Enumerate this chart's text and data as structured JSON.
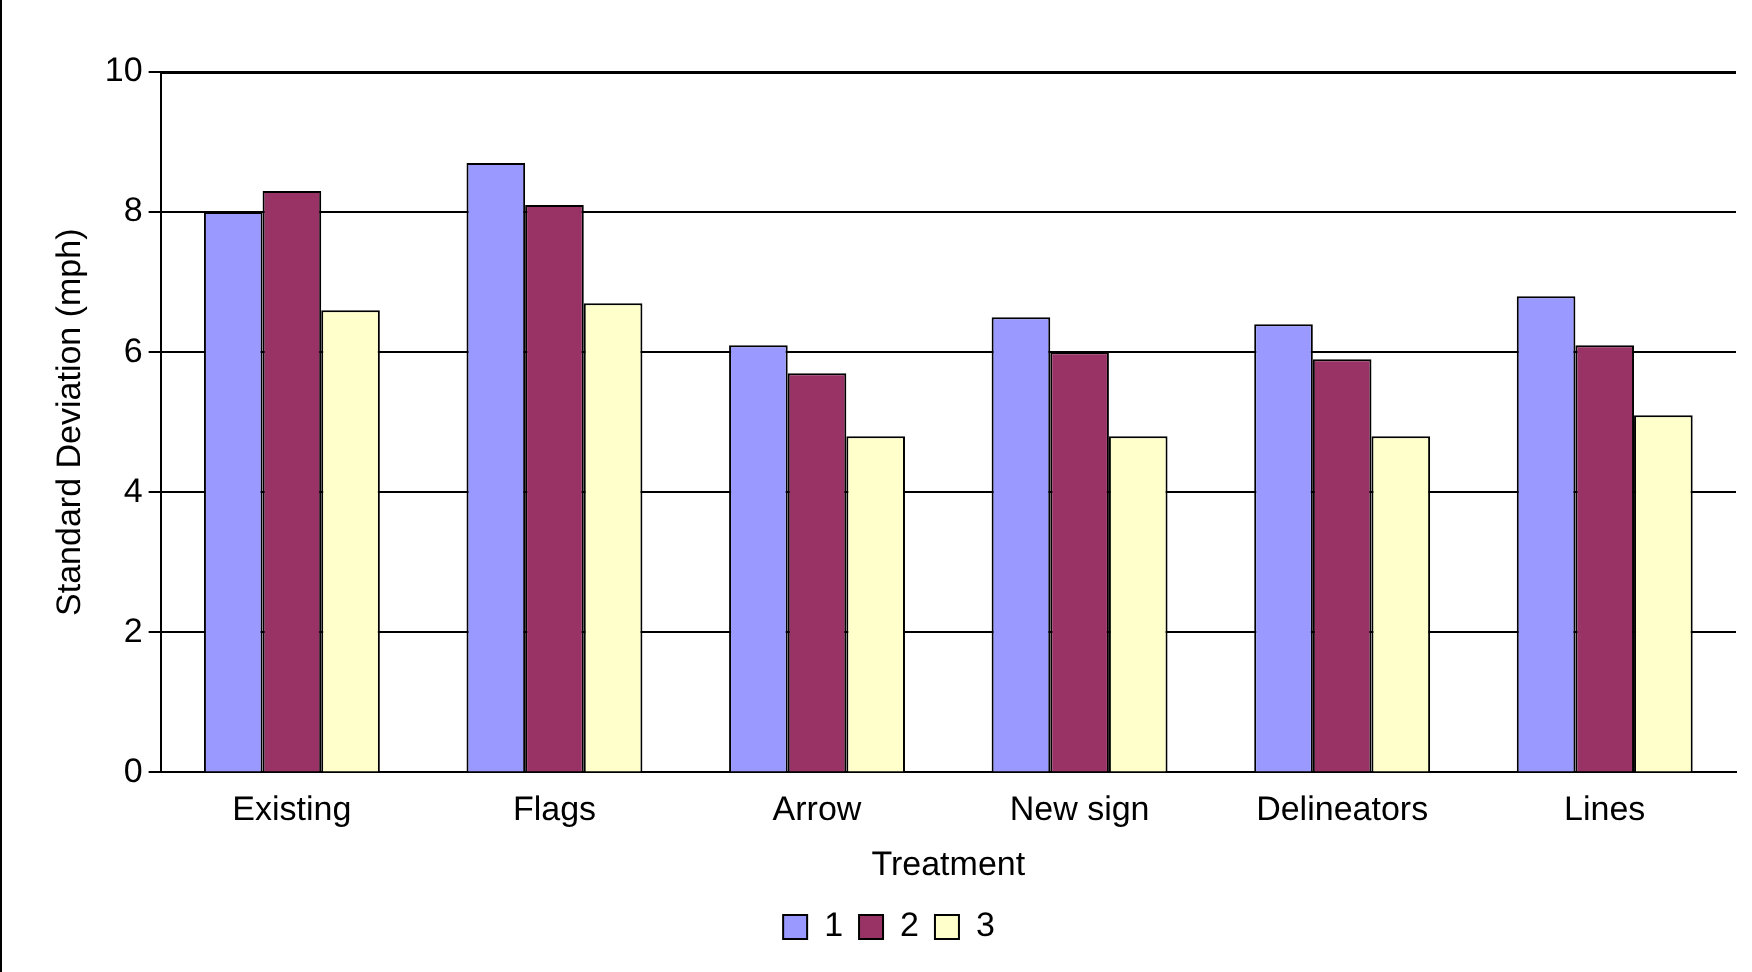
{
  "chart_data": {
    "type": "bar",
    "xlabel": "Treatment",
    "ylabel": "Standard Deviation (mph)",
    "categories": [
      "Existing",
      "Flags",
      "Arrow",
      "New sign",
      "Delineators",
      "Lines"
    ],
    "series": [
      {
        "name": "1",
        "color": "#9999ff",
        "values": [
          8.0,
          8.7,
          6.1,
          6.5,
          6.4,
          6.8
        ]
      },
      {
        "name": "2",
        "color": "#993366",
        "values": [
          8.3,
          8.1,
          5.7,
          6.0,
          5.9,
          6.1
        ]
      },
      {
        "name": "3",
        "color": "#ffffcc",
        "values": [
          6.6,
          6.7,
          4.8,
          4.8,
          4.8,
          5.1
        ]
      }
    ],
    "ylim": [
      0,
      10
    ],
    "yticks": [
      0,
      2,
      4,
      6,
      8,
      10
    ],
    "grid": "y",
    "legend": "bottom"
  }
}
